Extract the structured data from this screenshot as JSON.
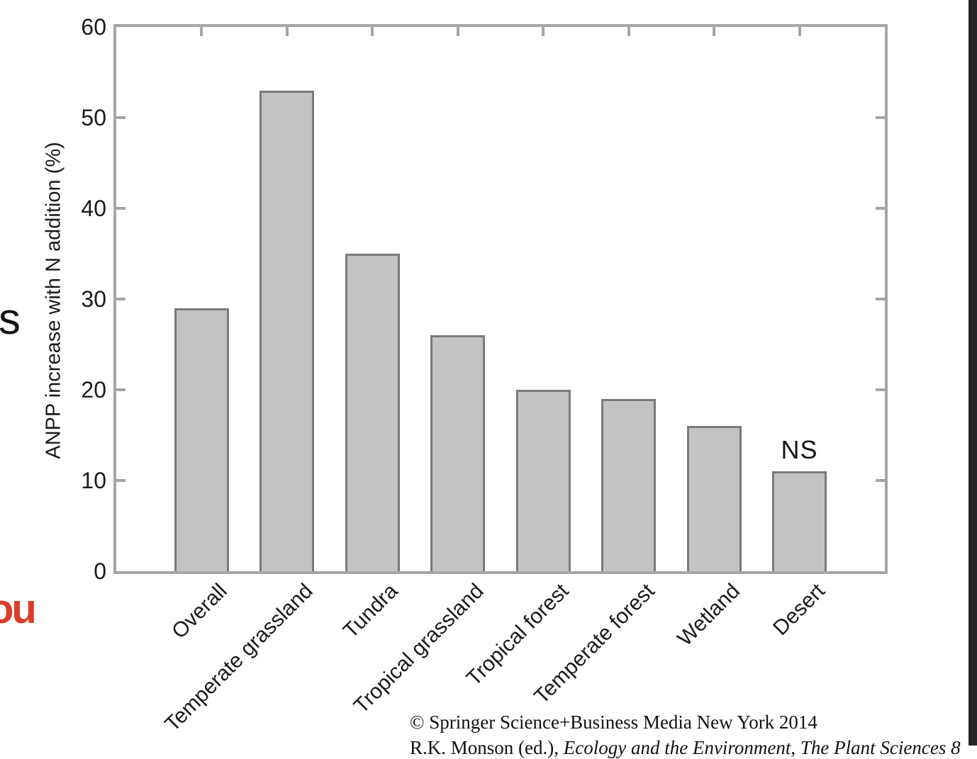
{
  "chart_data": {
    "type": "bar",
    "categories": [
      "Overall",
      "Temperate grassland",
      "Tundra",
      "Tropical grassland",
      "Tropical forest",
      "Temperate forest",
      "Wetland",
      "Desert"
    ],
    "values": [
      29,
      53,
      35,
      26,
      20,
      19,
      16,
      11
    ],
    "title": "",
    "xlabel": "",
    "ylabel": "ANPP increase with N addition (%)",
    "ylim": [
      0,
      60
    ],
    "yticks": [
      0,
      10,
      20,
      30,
      40,
      50,
      60
    ],
    "grid": false,
    "legend": null,
    "annotations": [
      {
        "text": "NS",
        "category": "Desert"
      }
    ],
    "bar_fill": "#c3c3c3",
    "bar_border": "#7a7a7a",
    "axis_color": "#a6a6a6"
  },
  "caption": {
    "line1": "© Springer Science+Business Media New York 2014",
    "line2_plain": "R.K. Monson (ed.), ",
    "line2_italic": "Ecology and the Environment, The Plant Sciences 8"
  },
  "edge_fragments": {
    "mid_left_text": "s",
    "bottom_left_text": "ou"
  },
  "colors": {
    "fragment_red": "#dd3b2a",
    "right_strip": "#26262a",
    "text": "#1b1b1b"
  }
}
